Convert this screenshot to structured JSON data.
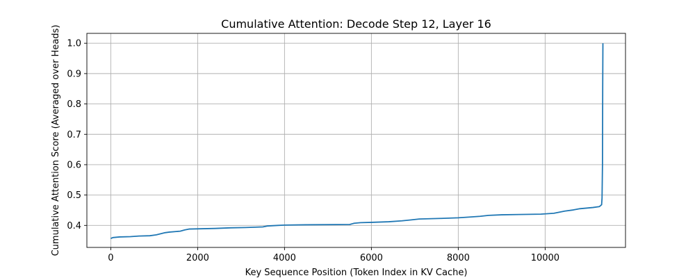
{
  "chart_data": {
    "type": "line",
    "title": "Cumulative Attention: Decode Step 12, Layer 16",
    "xlabel": "Key Sequence Position (Token Index in KV Cache)",
    "ylabel": "Cumulative Attention Score (Averaged over Heads)",
    "xlim": [
      -550,
      11850
    ],
    "ylim": [
      0.3275,
      1.0325
    ],
    "xticks": [
      0,
      2000,
      4000,
      6000,
      8000,
      10000
    ],
    "yticks": [
      0.4,
      0.5,
      0.6,
      0.7,
      0.8,
      0.9,
      1.0
    ],
    "grid": true,
    "color": "#1f77b4",
    "series": [
      {
        "x": [
          0,
          50,
          200,
          450,
          650,
          900,
          1050,
          1250,
          1350,
          1600,
          1700,
          1800,
          2400,
          2750,
          3100,
          3500,
          3600,
          3850,
          4000,
          4500,
          5500,
          5600,
          5750,
          6000,
          6400,
          6700,
          6900,
          7100,
          7600,
          8000,
          8300,
          8500,
          8700,
          9000,
          9400,
          9900,
          10200,
          10450,
          10650,
          10800,
          11100,
          11250,
          11300,
          11310,
          11320,
          11325,
          11330
        ],
        "y": [
          0.357,
          0.36,
          0.362,
          0.363,
          0.365,
          0.366,
          0.369,
          0.376,
          0.378,
          0.381,
          0.385,
          0.388,
          0.39,
          0.392,
          0.393,
          0.395,
          0.398,
          0.4,
          0.401,
          0.402,
          0.403,
          0.407,
          0.409,
          0.41,
          0.412,
          0.415,
          0.418,
          0.421,
          0.423,
          0.425,
          0.428,
          0.43,
          0.433,
          0.435,
          0.436,
          0.437,
          0.44,
          0.447,
          0.451,
          0.455,
          0.459,
          0.462,
          0.468,
          0.49,
          0.6,
          0.85,
          1.0
        ]
      }
    ]
  }
}
